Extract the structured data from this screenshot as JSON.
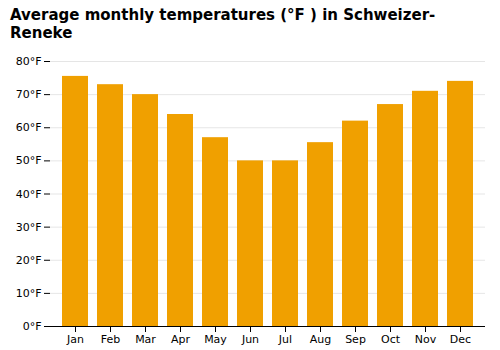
{
  "chart_data": {
    "type": "bar",
    "title": "Average monthly temperatures (°F ) in Schweizer-Reneke",
    "categories": [
      "Jan",
      "Feb",
      "Mar",
      "Apr",
      "May",
      "Jun",
      "Jul",
      "Aug",
      "Sep",
      "Oct",
      "Nov",
      "Dec"
    ],
    "values": [
      75.5,
      73.0,
      70.0,
      64.0,
      57.0,
      50.0,
      50.0,
      55.5,
      62.0,
      67.0,
      71.0,
      74.0
    ],
    "color": "#F0A000",
    "ylim": [
      0,
      80
    ],
    "yticks": [
      {
        "value": 0,
        "label": "0°F"
      },
      {
        "value": 10,
        "label": "10°F"
      },
      {
        "value": 20,
        "label": "20°F"
      },
      {
        "value": 30,
        "label": "30°F"
      },
      {
        "value": 40,
        "label": "40°F"
      },
      {
        "value": 50,
        "label": "50°F"
      },
      {
        "value": 60,
        "label": "60°F"
      },
      {
        "value": 70,
        "label": "70°F"
      },
      {
        "value": 80,
        "label": "80°F"
      }
    ],
    "grid": true
  }
}
